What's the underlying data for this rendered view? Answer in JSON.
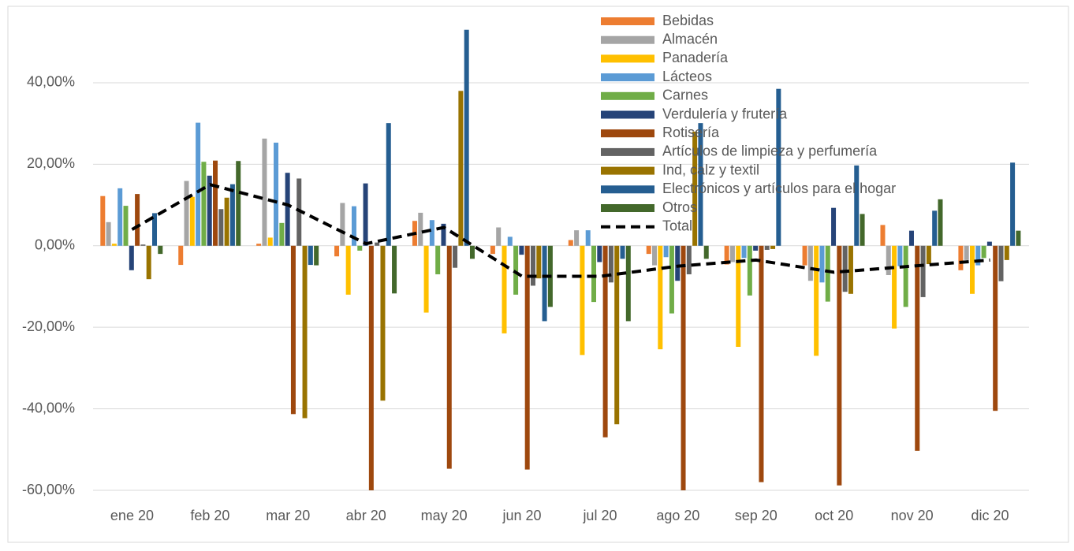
{
  "chart_data": {
    "type": "bar",
    "categories": [
      "ene 20",
      "feb 20",
      "mar 20",
      "abr 20",
      "may 20",
      "jun 20",
      "jul 20",
      "ago 20",
      "sep 20",
      "oct 20",
      "nov 20",
      "dic 20"
    ],
    "series": [
      {
        "name": "Bebidas",
        "color": "#ed7d31",
        "values": [
          12.2,
          -4.7,
          0.5,
          -2.6,
          6.1,
          -2,
          1.4,
          -2,
          -4.6,
          -4.8,
          5.1,
          -6
        ]
      },
      {
        "name": "Almacén",
        "color": "#a5a5a5",
        "values": [
          5.8,
          15.9,
          26.3,
          10.5,
          8.1,
          4.5,
          3.8,
          -4.8,
          -4,
          -8.6,
          -7.2,
          -3.5
        ]
      },
      {
        "name": "Panadería",
        "color": "#ffc000",
        "values": [
          0.5,
          12,
          2,
          -12,
          -16.4,
          -21.5,
          -26.8,
          -25.4,
          -24.8,
          -27,
          -20.3,
          -11.8
        ]
      },
      {
        "name": "Lácteos",
        "color": "#5b9bd5",
        "values": [
          14.1,
          30.2,
          25.3,
          9.7,
          6.3,
          2.2,
          3.8,
          -2.8,
          -3,
          -9,
          -5,
          -4.8
        ]
      },
      {
        "name": "Carnes",
        "color": "#70ad47",
        "values": [
          9.8,
          20.6,
          5.6,
          -1.2,
          -7,
          -12,
          -13.8,
          -16.6,
          -12.2,
          -13.7,
          -15,
          -3
        ]
      },
      {
        "name": "Verdulería y frutería",
        "color": "#264478",
        "values": [
          -6,
          17.2,
          17.9,
          15.3,
          5.4,
          -2.2,
          -4,
          -8.6,
          -1.2,
          9.3,
          3.7,
          1
        ]
      },
      {
        "name": "Rotisería",
        "color": "#9e480e",
        "values": [
          12.7,
          20.9,
          -41.3,
          -60,
          -54.7,
          -54.9,
          -47,
          -60,
          -58,
          -58.8,
          -50.3,
          -40.5
        ]
      },
      {
        "name": "Artículos de limpieza y perfumería",
        "color": "#636363",
        "values": [
          0.3,
          9,
          16.5,
          0.8,
          -5.4,
          -9.8,
          -9,
          -7,
          -1,
          -11.3,
          -12.6,
          -8.7
        ]
      },
      {
        "name": "Ind, calz y textil",
        "color": "#997300",
        "values": [
          -8.2,
          11.8,
          -42.3,
          -38,
          38,
          -8,
          -43.8,
          28,
          -0.8,
          -11.8,
          -4.5,
          -3.5
        ]
      },
      {
        "name": "Electrónicos y artículos para el hogar",
        "color": "#255e91",
        "values": [
          8,
          15.1,
          -4.7,
          30.1,
          53,
          -18.5,
          -3.2,
          30.1,
          38.5,
          19.7,
          8.6,
          20.4
        ]
      },
      {
        "name": "Otros",
        "color": "#43682b",
        "values": [
          -2,
          20.8,
          -4.8,
          -11.7,
          -3.2,
          -15,
          -18.5,
          -3.2,
          0,
          7.8,
          11.4,
          3.7
        ]
      }
    ],
    "line": {
      "name": "Total",
      "color": "#000000",
      "values": [
        4,
        15,
        10,
        0.5,
        4.5,
        -7.5,
        -7.5,
        -5,
        -3.5,
        -6.5,
        -5,
        -3.5
      ]
    },
    "ylim": [
      -60,
      55
    ],
    "yticks": [
      {
        "value": -60,
        "label": "-60,00%"
      },
      {
        "value": -40,
        "label": "-40,00%"
      },
      {
        "value": -20,
        "label": "-20,00%"
      },
      {
        "value": 0,
        "label": "0,00%"
      },
      {
        "value": 20,
        "label": "20,00%"
      },
      {
        "value": 40,
        "label": "40,00%"
      }
    ],
    "grid": true
  }
}
